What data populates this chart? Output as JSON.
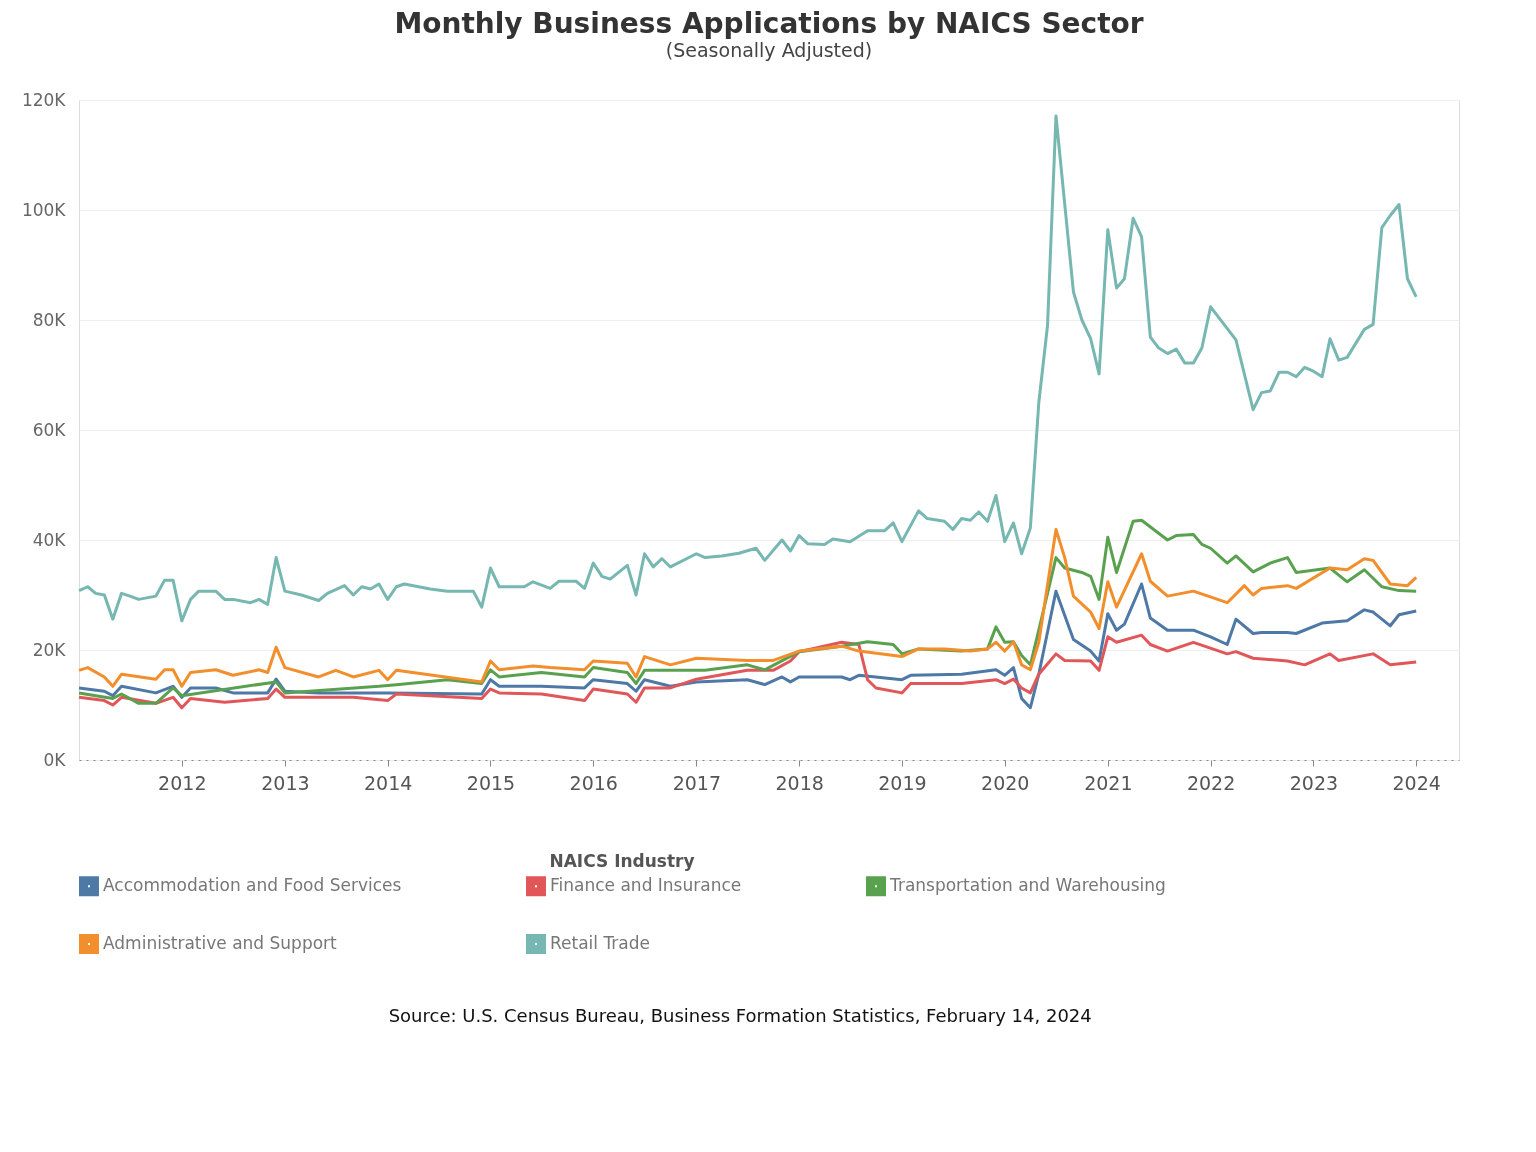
{
  "chart_data": {
    "type": "line",
    "title": "Monthly Business Applications by NAICS Sector",
    "subtitle": "(Seasonally Adjusted)",
    "legend_title": "NAICS Industry",
    "annotations": [
      "Source: U.S. Census Bureau, Business Formation Statistics, February 14, 2024"
    ],
    "xlim": [
      "2011-01",
      "2024-06"
    ],
    "xticks": [
      "2012",
      "2013",
      "2014",
      "2015",
      "2016",
      "2017",
      "2018",
      "2019",
      "2020",
      "2021",
      "2022",
      "2023",
      "2024"
    ],
    "ylim": [
      0,
      120000
    ],
    "yticks": [
      {
        "value": 0,
        "label": "0K"
      },
      {
        "value": 20000,
        "label": "20K"
      },
      {
        "value": 40000,
        "label": "40K"
      },
      {
        "value": 60000,
        "label": "60K"
      },
      {
        "value": 80000,
        "label": "80K"
      },
      {
        "value": 100000,
        "label": "100K"
      },
      {
        "value": 120000,
        "label": "120K"
      }
    ],
    "grid": "y",
    "legend": "bottom",
    "series": [
      {
        "name": "Accommodation and Food Services",
        "color": "#4e79a7",
        "x": [
          "2011-01",
          "2011-04",
          "2011-05",
          "2011-06",
          "2011-10",
          "2011-12",
          "2012-01",
          "2012-02",
          "2012-05",
          "2012-07",
          "2012-11",
          "2012-12",
          "2013-01",
          "2013-05",
          "2014-01",
          "2014-12",
          "2015-01",
          "2015-02",
          "2015-07",
          "2015-12",
          "2016-01",
          "2016-05",
          "2016-06",
          "2016-07",
          "2016-10",
          "2017-01",
          "2017-07",
          "2017-09",
          "2017-11",
          "2017-12",
          "2018-01",
          "2018-06",
          "2018-07",
          "2018-08",
          "2019-01",
          "2019-02",
          "2019-08",
          "2019-12",
          "2020-01",
          "2020-02",
          "2020-03",
          "2020-04",
          "2020-05",
          "2020-07",
          "2020-09",
          "2020-11",
          "2020-12",
          "2021-01",
          "2021-02",
          "2021-03",
          "2021-05",
          "2021-06",
          "2021-08",
          "2021-11",
          "2022-01",
          "2022-03",
          "2022-04",
          "2022-06",
          "2022-07",
          "2022-10",
          "2022-11",
          "2023-02",
          "2023-05",
          "2023-07",
          "2023-08",
          "2023-10",
          "2023-11",
          "2024-01"
        ],
        "values": [
          13100,
          12500,
          11700,
          13400,
          12200,
          13400,
          11400,
          13100,
          13100,
          12200,
          12200,
          14700,
          12500,
          12200,
          12200,
          12000,
          14600,
          13400,
          13400,
          13100,
          14600,
          13900,
          12500,
          14600,
          13400,
          14200,
          14600,
          13700,
          15100,
          14200,
          15100,
          15100,
          14600,
          15400,
          14600,
          15400,
          15600,
          16400,
          15400,
          16800,
          11200,
          9500,
          15600,
          30700,
          21900,
          19800,
          18000,
          26600,
          23600,
          24700,
          32000,
          25800,
          23600,
          23600,
          22400,
          21000,
          25600,
          23000,
          23200,
          23200,
          23000,
          24900,
          25300,
          27300,
          26900,
          24400,
          26400,
          27100
        ]
      },
      {
        "name": "Finance and Insurance",
        "color": "#e15759",
        "x": [
          "2011-01",
          "2011-04",
          "2011-05",
          "2011-06",
          "2011-10",
          "2011-12",
          "2012-01",
          "2012-02",
          "2012-06",
          "2012-11",
          "2012-12",
          "2013-01",
          "2013-09",
          "2014-01",
          "2014-02",
          "2014-12",
          "2015-01",
          "2015-02",
          "2015-07",
          "2015-12",
          "2016-01",
          "2016-05",
          "2016-06",
          "2016-07",
          "2016-10",
          "2017-01",
          "2017-07",
          "2017-10",
          "2017-12",
          "2018-01",
          "2018-06",
          "2018-08",
          "2018-09",
          "2018-10",
          "2019-01",
          "2019-02",
          "2019-08",
          "2019-12",
          "2020-01",
          "2020-02",
          "2020-03",
          "2020-04",
          "2020-05",
          "2020-07",
          "2020-08",
          "2020-11",
          "2020-12",
          "2021-01",
          "2021-02",
          "2021-05",
          "2021-06",
          "2021-08",
          "2021-11",
          "2022-03",
          "2022-04",
          "2022-06",
          "2022-10",
          "2022-12",
          "2023-03",
          "2023-04",
          "2023-08",
          "2023-10",
          "2024-01"
        ],
        "values": [
          11400,
          10800,
          10000,
          11400,
          10300,
          11400,
          9500,
          11200,
          10500,
          11200,
          12900,
          11400,
          11400,
          10800,
          12000,
          11200,
          12900,
          12200,
          12000,
          10800,
          12900,
          12000,
          10500,
          13100,
          13100,
          14700,
          16300,
          16300,
          18000,
          19700,
          21400,
          21000,
          14600,
          13100,
          12200,
          13900,
          13900,
          14600,
          13900,
          14700,
          13100,
          12200,
          15600,
          19300,
          18100,
          18000,
          16300,
          22400,
          21400,
          22700,
          21000,
          19800,
          21400,
          19300,
          19700,
          18500,
          18000,
          17300,
          19300,
          18100,
          19300,
          17300,
          17800
        ]
      },
      {
        "name": "Transportation and Warehousing",
        "color": "#59a14f",
        "x": [
          "2011-01",
          "2011-05",
          "2011-06",
          "2011-08",
          "2011-10",
          "2011-12",
          "2012-01",
          "2012-12",
          "2013-01",
          "2013-12",
          "2014-02",
          "2014-08",
          "2014-12",
          "2015-01",
          "2015-02",
          "2015-07",
          "2015-12",
          "2016-01",
          "2016-05",
          "2016-06",
          "2016-07",
          "2017-02",
          "2017-07",
          "2017-09",
          "2018-01",
          "2018-06",
          "2018-09",
          "2018-12",
          "2019-01",
          "2019-03",
          "2019-08",
          "2019-11",
          "2019-12",
          "2020-01",
          "2020-02",
          "2020-03",
          "2020-04",
          "2020-05",
          "2020-07",
          "2020-08",
          "2020-10",
          "2020-11",
          "2020-12",
          "2021-01",
          "2021-02",
          "2021-04",
          "2021-05",
          "2021-08",
          "2021-09",
          "2021-11",
          "2021-12",
          "2022-01",
          "2022-03",
          "2022-04",
          "2022-06",
          "2022-08",
          "2022-10",
          "2022-11",
          "2023-03",
          "2023-05",
          "2023-07",
          "2023-09",
          "2023-11",
          "2024-01"
        ],
        "values": [
          12200,
          11200,
          12000,
          10300,
          10300,
          13100,
          11700,
          14200,
          12200,
          13400,
          13700,
          14600,
          13900,
          16400,
          15100,
          15900,
          15100,
          16800,
          15900,
          13900,
          16300,
          16300,
          17300,
          16400,
          19700,
          20700,
          21500,
          21000,
          19300,
          20200,
          19800,
          20200,
          24200,
          21400,
          21500,
          19000,
          17300,
          23600,
          36800,
          34900,
          34100,
          33400,
          29200,
          40500,
          34100,
          43400,
          43600,
          40000,
          40800,
          41000,
          39200,
          38500,
          35800,
          37100,
          34200,
          35800,
          36800,
          34100,
          34900,
          32400,
          34600,
          31500,
          30800,
          30700
        ]
      },
      {
        "name": "Administrative and Support",
        "color": "#f28e2b",
        "x": [
          "2011-01",
          "2011-02",
          "2011-04",
          "2011-05",
          "2011-06",
          "2011-10",
          "2011-11",
          "2011-12",
          "2012-01",
          "2012-02",
          "2012-05",
          "2012-07",
          "2012-10",
          "2012-11",
          "2012-12",
          "2013-01",
          "2013-05",
          "2013-07",
          "2013-09",
          "2013-12",
          "2014-01",
          "2014-02",
          "2014-12",
          "2015-01",
          "2015-02",
          "2015-06",
          "2015-08",
          "2015-12",
          "2016-01",
          "2016-05",
          "2016-06",
          "2016-07",
          "2016-10",
          "2017-01",
          "2017-07",
          "2017-10",
          "2018-01",
          "2018-06",
          "2018-08",
          "2019-01",
          "2019-03",
          "2019-06",
          "2019-09",
          "2019-11",
          "2019-12",
          "2020-01",
          "2020-02",
          "2020-03",
          "2020-04",
          "2020-05",
          "2020-07",
          "2020-08",
          "2020-09",
          "2020-11",
          "2020-12",
          "2021-01",
          "2021-02",
          "2021-05",
          "2021-06",
          "2021-08",
          "2021-11",
          "2022-03",
          "2022-05",
          "2022-06",
          "2022-07",
          "2022-10",
          "2022-11",
          "2023-03",
          "2023-05",
          "2023-07",
          "2023-08",
          "2023-10",
          "2023-12",
          "2024-01"
        ],
        "values": [
          16300,
          16800,
          15100,
          13400,
          15600,
          14700,
          16400,
          16400,
          13400,
          15900,
          16400,
          15400,
          16400,
          15900,
          20500,
          16800,
          15100,
          16300,
          15100,
          16300,
          14600,
          16300,
          14200,
          18000,
          16400,
          17100,
          16800,
          16400,
          18000,
          17600,
          15100,
          18800,
          17300,
          18500,
          18100,
          18100,
          19800,
          20700,
          19800,
          18800,
          20200,
          20200,
          19800,
          20200,
          21400,
          19800,
          21500,
          17300,
          16400,
          21400,
          41900,
          36800,
          29800,
          26900,
          23900,
          32400,
          27800,
          37500,
          32500,
          29800,
          30700,
          28600,
          31700,
          30000,
          31200,
          31700,
          31200,
          34900,
          34600,
          36600,
          36300,
          32000,
          31700,
          33200
        ]
      },
      {
        "name": "Retail Trade",
        "color": "#76b7b2",
        "x": [
          "2011-01",
          "2011-02",
          "2011-03",
          "2011-04",
          "2011-05",
          "2011-06",
          "2011-07",
          "2011-08",
          "2011-10",
          "2011-11",
          "2011-12",
          "2012-01",
          "2012-02",
          "2012-03",
          "2012-05",
          "2012-06",
          "2012-07",
          "2012-09",
          "2012-10",
          "2012-11",
          "2012-12",
          "2013-01",
          "2013-03",
          "2013-05",
          "2013-06",
          "2013-08",
          "2013-09",
          "2013-10",
          "2013-11",
          "2013-12",
          "2014-01",
          "2014-02",
          "2014-03",
          "2014-06",
          "2014-08",
          "2014-11",
          "2014-12",
          "2015-01",
          "2015-02",
          "2015-05",
          "2015-06",
          "2015-08",
          "2015-09",
          "2015-11",
          "2015-12",
          "2016-01",
          "2016-02",
          "2016-03",
          "2016-05",
          "2016-06",
          "2016-07",
          "2016-08",
          "2016-09",
          "2016-10",
          "2017-01",
          "2017-02",
          "2017-04",
          "2017-06",
          "2017-08",
          "2017-09",
          "2017-11",
          "2017-12",
          "2018-01",
          "2018-02",
          "2018-04",
          "2018-05",
          "2018-07",
          "2018-09",
          "2018-11",
          "2018-12",
          "2019-01",
          "2019-03",
          "2019-04",
          "2019-06",
          "2019-07",
          "2019-08",
          "2019-09",
          "2019-10",
          "2019-11",
          "2019-12",
          "2020-01",
          "2020-02",
          "2020-03",
          "2020-04",
          "2020-05",
          "2020-06",
          "2020-07",
          "2020-09",
          "2020-10",
          "2020-11",
          "2020-12",
          "2021-01",
          "2021-02",
          "2021-03",
          "2021-04",
          "2021-05",
          "2021-06",
          "2021-07",
          "2021-08",
          "2021-09",
          "2021-10",
          "2021-11",
          "2021-12",
          "2022-01",
          "2022-04",
          "2022-06",
          "2022-07",
          "2022-08",
          "2022-09",
          "2022-10",
          "2022-11",
          "2022-12",
          "2023-01",
          "2023-02",
          "2023-03",
          "2023-04",
          "2023-05",
          "2023-06",
          "2023-07",
          "2023-08",
          "2023-09",
          "2023-10",
          "2023-11",
          "2023-12",
          "2024-01"
        ],
        "values": [
          30800,
          31500,
          30300,
          30000,
          25600,
          30300,
          29800,
          29200,
          29800,
          32700,
          32700,
          25300,
          29200,
          30700,
          30700,
          29200,
          29200,
          28600,
          29200,
          28300,
          36800,
          30700,
          30000,
          29000,
          30300,
          31700,
          30000,
          31500,
          31100,
          32000,
          29200,
          31500,
          32000,
          31100,
          30700,
          30700,
          27800,
          34900,
          31500,
          31500,
          32400,
          31200,
          32500,
          32500,
          31200,
          35800,
          33400,
          32900,
          35400,
          30000,
          37500,
          35100,
          36600,
          35100,
          37500,
          36800,
          37100,
          37600,
          38500,
          36300,
          40000,
          38000,
          40800,
          39300,
          39200,
          40200,
          39700,
          41700,
          41700,
          43100,
          39700,
          45300,
          43900,
          43400,
          41900,
          43900,
          43600,
          45100,
          43400,
          48100,
          39700,
          43100,
          37500,
          42200,
          65000,
          79000,
          117100,
          85100,
          80000,
          76600,
          70200,
          96400,
          85800,
          87500,
          98500,
          95100,
          76900,
          74900,
          73900,
          74700,
          72200,
          72200,
          74900,
          82400,
          76400,
          63700,
          66800,
          67100,
          70500,
          70500,
          69700,
          71400,
          70700,
          69700,
          76600,
          72700,
          73200,
          75800,
          78300,
          79200,
          96800,
          99000,
          101000,
          87500,
          84200
        ]
      }
    ]
  }
}
